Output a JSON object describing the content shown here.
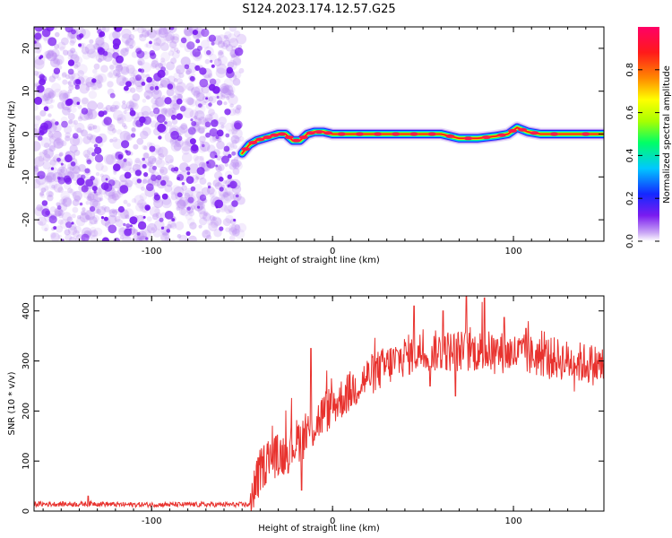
{
  "title": "S124.2023.174.12.57.G25",
  "colors": {
    "snr_line": "#e8322e",
    "scatter_dots": "#7a1cf0",
    "colormap": [
      "#ffffff",
      "#c9a6f5",
      "#7a1cf0",
      "#1428ff",
      "#00c8ff",
      "#00ff66",
      "#a8ff00",
      "#ffff00",
      "#ff8a00",
      "#ff1a1a",
      "#ff0066"
    ]
  },
  "chart_data": [
    {
      "type": "heatmap",
      "xlabel": "Height of straight line (km)",
      "ylabel": "Frequency (Hz)",
      "xlim": [
        -165,
        150
      ],
      "ylim": [
        -25,
        25
      ],
      "xticks": [
        {
          "v": -100,
          "label": "-100"
        },
        {
          "v": 0,
          "label": "0"
        },
        {
          "v": 100,
          "label": "100"
        }
      ],
      "yticks": [
        {
          "v": 20,
          "label": "20"
        },
        {
          "v": 10,
          "label": "10"
        },
        {
          "v": 0,
          "label": "0"
        },
        {
          "v": -10,
          "label": "-10"
        },
        {
          "v": -20,
          "label": "-20"
        }
      ],
      "noise_region": {
        "x_start": -165,
        "x_end": -50
      },
      "ridge": [
        {
          "x": -50,
          "y": -4.5
        },
        {
          "x": -46,
          "y": -2.5
        },
        {
          "x": -42,
          "y": -1.5
        },
        {
          "x": -38,
          "y": -1
        },
        {
          "x": -34,
          "y": -0.5
        },
        {
          "x": -30,
          "y": 0
        },
        {
          "x": -26,
          "y": 0
        },
        {
          "x": -22,
          "y": -1.5
        },
        {
          "x": -18,
          "y": -1.5
        },
        {
          "x": -14,
          "y": 0
        },
        {
          "x": -10,
          "y": 0.5
        },
        {
          "x": -5,
          "y": 0.5
        },
        {
          "x": 0,
          "y": 0
        },
        {
          "x": 10,
          "y": 0
        },
        {
          "x": 20,
          "y": 0
        },
        {
          "x": 30,
          "y": 0
        },
        {
          "x": 40,
          "y": 0
        },
        {
          "x": 50,
          "y": 0
        },
        {
          "x": 60,
          "y": 0
        },
        {
          "x": 70,
          "y": -1
        },
        {
          "x": 80,
          "y": -1
        },
        {
          "x": 90,
          "y": -0.5
        },
        {
          "x": 97,
          "y": 0
        },
        {
          "x": 102,
          "y": 1.5
        },
        {
          "x": 108,
          "y": 0.5
        },
        {
          "x": 115,
          "y": 0
        },
        {
          "x": 130,
          "y": 0
        },
        {
          "x": 150,
          "y": 0
        }
      ],
      "colorbar": {
        "label": "Normalized spectral amplitude",
        "range": [
          0,
          1
        ],
        "ticks": [
          {
            "v": 0,
            "label": "0.0"
          },
          {
            "v": 0.2,
            "label": "0.2"
          },
          {
            "v": 0.4,
            "label": "0.4"
          },
          {
            "v": 0.6,
            "label": "0.6"
          },
          {
            "v": 0.8,
            "label": "0.8"
          }
        ]
      }
    },
    {
      "type": "line",
      "xlabel": "Height of straight line (km)",
      "ylabel": "SNR (10 * v/v)",
      "xlim": [
        -165,
        150
      ],
      "ylim": [
        0,
        430
      ],
      "xticks": [
        {
          "v": -100,
          "label": "-100"
        },
        {
          "v": 0,
          "label": "0"
        },
        {
          "v": 100,
          "label": "100"
        }
      ],
      "yticks": [
        {
          "v": 0,
          "label": "0"
        },
        {
          "v": 100,
          "label": "100"
        },
        {
          "v": 200,
          "label": "200"
        },
        {
          "v": 300,
          "label": "300"
        },
        {
          "v": 400,
          "label": "400"
        }
      ],
      "series": [
        {
          "envelope_x": [
            -165,
            -140,
            -130,
            -120,
            -100,
            -80,
            -60,
            -46,
            -40,
            -35,
            -30,
            -25,
            -20,
            -15,
            -10,
            -5,
            0,
            10,
            20,
            30,
            40,
            50,
            60,
            70,
            80,
            90,
            100,
            110,
            120,
            130,
            140,
            150
          ],
          "envelope_y": [
            14,
            14,
            15,
            13,
            13,
            13,
            13,
            13,
            80,
            110,
            110,
            118,
            140,
            150,
            170,
            195,
            210,
            240,
            270,
            290,
            310,
            320,
            320,
            320,
            320,
            318,
            315,
            310,
            308,
            300,
            295,
            290
          ],
          "spikes": [
            {
              "x": -135,
              "y": 30
            },
            {
              "x": -12,
              "y": 325
            },
            {
              "x": -17,
              "y": 42
            },
            {
              "x": 45,
              "y": 410
            },
            {
              "x": 61,
              "y": 400
            },
            {
              "x": 74,
              "y": 430
            },
            {
              "x": 84,
              "y": 426
            },
            {
              "x": 107,
              "y": 365
            },
            {
              "x": 95,
              "y": 387
            },
            {
              "x": 54,
              "y": 250
            },
            {
              "x": 68,
              "y": 230
            }
          ]
        }
      ]
    }
  ]
}
